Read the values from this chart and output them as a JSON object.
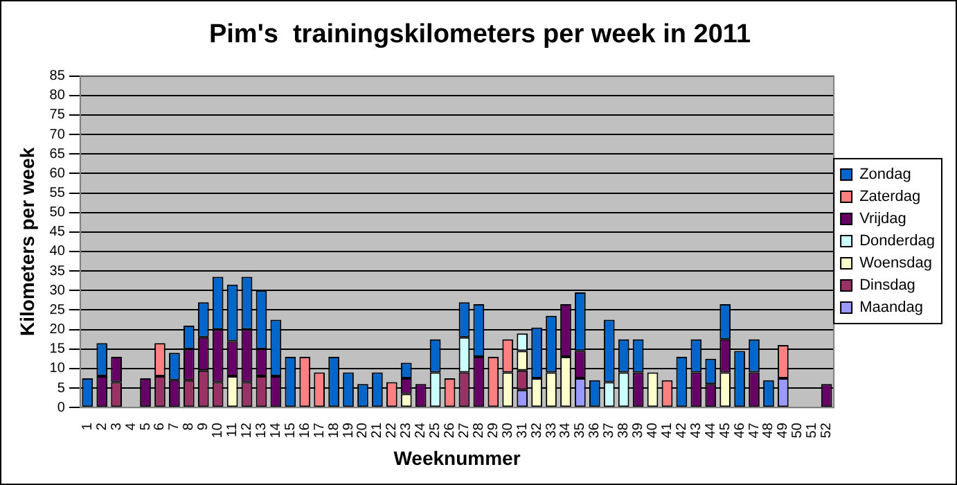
{
  "chart_data": {
    "type": "bar",
    "title": "Pim's  trainingskilometers per week in 2011",
    "xlabel": "Weeknummer",
    "ylabel": "Kilometers per week",
    "categories": [
      "1",
      "2",
      "3",
      "4",
      "5",
      "6",
      "7",
      "8",
      "9",
      "10",
      "11",
      "12",
      "13",
      "14",
      "15",
      "16",
      "17",
      "18",
      "19",
      "20",
      "21",
      "22",
      "23",
      "24",
      "25",
      "26",
      "27",
      "28",
      "29",
      "30",
      "31",
      "32",
      "33",
      "34",
      "35",
      "36",
      "37",
      "38",
      "39",
      "40",
      "41",
      "42",
      "43",
      "44",
      "45",
      "46",
      "47",
      "48",
      "49",
      "50",
      "51",
      "52"
    ],
    "stacked": true,
    "ylim": [
      0,
      85
    ],
    "yticks": [
      0,
      5,
      10,
      15,
      20,
      25,
      30,
      35,
      40,
      45,
      50,
      55,
      60,
      65,
      70,
      75,
      80,
      85
    ],
    "grid": "y",
    "legend": "right",
    "series": [
      {
        "name": "Maandag",
        "color": "#9999ff",
        "values": [
          null,
          null,
          null,
          null,
          null,
          null,
          null,
          null,
          null,
          null,
          null,
          null,
          null,
          null,
          null,
          null,
          null,
          null,
          null,
          null,
          null,
          null,
          null,
          null,
          null,
          null,
          null,
          null,
          null,
          null,
          4.5,
          null,
          null,
          null,
          7.5,
          null,
          null,
          null,
          null,
          null,
          null,
          null,
          null,
          null,
          null,
          null,
          null,
          null,
          7.5,
          null,
          null,
          null
        ]
      },
      {
        "name": "Dinsdag",
        "color": "#993366",
        "values": [
          null,
          null,
          6.5,
          null,
          null,
          8,
          null,
          7,
          9.5,
          6.5,
          null,
          6.5,
          8,
          null,
          null,
          null,
          null,
          null,
          null,
          null,
          null,
          null,
          null,
          null,
          null,
          null,
          9,
          null,
          null,
          null,
          5,
          null,
          null,
          null,
          null,
          null,
          null,
          null,
          null,
          null,
          null,
          null,
          null,
          null,
          null,
          null,
          null,
          null,
          null,
          null,
          null,
          null
        ]
      },
      {
        "name": "Woensdag",
        "color": "#ffffcc",
        "values": [
          null,
          null,
          null,
          null,
          null,
          null,
          null,
          null,
          null,
          null,
          8,
          null,
          null,
          null,
          null,
          null,
          null,
          null,
          null,
          null,
          null,
          null,
          3.5,
          null,
          null,
          null,
          null,
          null,
          null,
          9,
          5,
          7.5,
          9,
          13,
          null,
          null,
          null,
          null,
          null,
          9,
          null,
          null,
          null,
          null,
          9,
          null,
          null,
          null,
          null,
          null,
          null,
          null
        ]
      },
      {
        "name": "Donderdag",
        "color": "#ccffff",
        "values": [
          null,
          null,
          null,
          null,
          null,
          null,
          null,
          null,
          null,
          null,
          null,
          null,
          null,
          null,
          null,
          null,
          null,
          null,
          null,
          null,
          null,
          null,
          null,
          null,
          9,
          null,
          9,
          null,
          null,
          null,
          4.5,
          null,
          null,
          null,
          null,
          null,
          6.5,
          9,
          null,
          null,
          null,
          null,
          null,
          null,
          null,
          null,
          null,
          null,
          null,
          null,
          null,
          null
        ]
      },
      {
        "name": "Vrijdag",
        "color": "#660066",
        "values": [
          null,
          8,
          6.5,
          null,
          7.5,
          null,
          7,
          8,
          8.5,
          13.5,
          9,
          13.5,
          7,
          8,
          null,
          null,
          null,
          null,
          null,
          null,
          null,
          null,
          4,
          6,
          null,
          null,
          null,
          13,
          null,
          null,
          null,
          null,
          null,
          13.5,
          7,
          null,
          null,
          null,
          9,
          null,
          null,
          null,
          9,
          6,
          8.5,
          null,
          9,
          null,
          null,
          null,
          null,
          6
        ]
      },
      {
        "name": "Zaterdag",
        "color": "#ff8080",
        "values": [
          null,
          null,
          null,
          null,
          null,
          8.5,
          null,
          null,
          null,
          null,
          null,
          null,
          null,
          null,
          null,
          13,
          9,
          null,
          null,
          null,
          null,
          6.5,
          null,
          null,
          null,
          7.5,
          null,
          null,
          13,
          8.5,
          null,
          null,
          null,
          null,
          null,
          null,
          null,
          null,
          null,
          null,
          7,
          null,
          null,
          null,
          null,
          null,
          null,
          null,
          8.5,
          null,
          null,
          null
        ]
      },
      {
        "name": "Zondag",
        "color": "#0066cc",
        "values": [
          7.5,
          8.5,
          null,
          null,
          null,
          null,
          7,
          6,
          9,
          13.5,
          14.5,
          13.5,
          15,
          14.5,
          13,
          null,
          null,
          13,
          9,
          6,
          9,
          null,
          4,
          null,
          8.5,
          null,
          9,
          13.5,
          null,
          null,
          null,
          13,
          14.5,
          null,
          15,
          7,
          16,
          8.5,
          8.5,
          null,
          null,
          13,
          8.5,
          6.5,
          9,
          14.5,
          8.5,
          7,
          null,
          null,
          null,
          null
        ]
      }
    ]
  }
}
